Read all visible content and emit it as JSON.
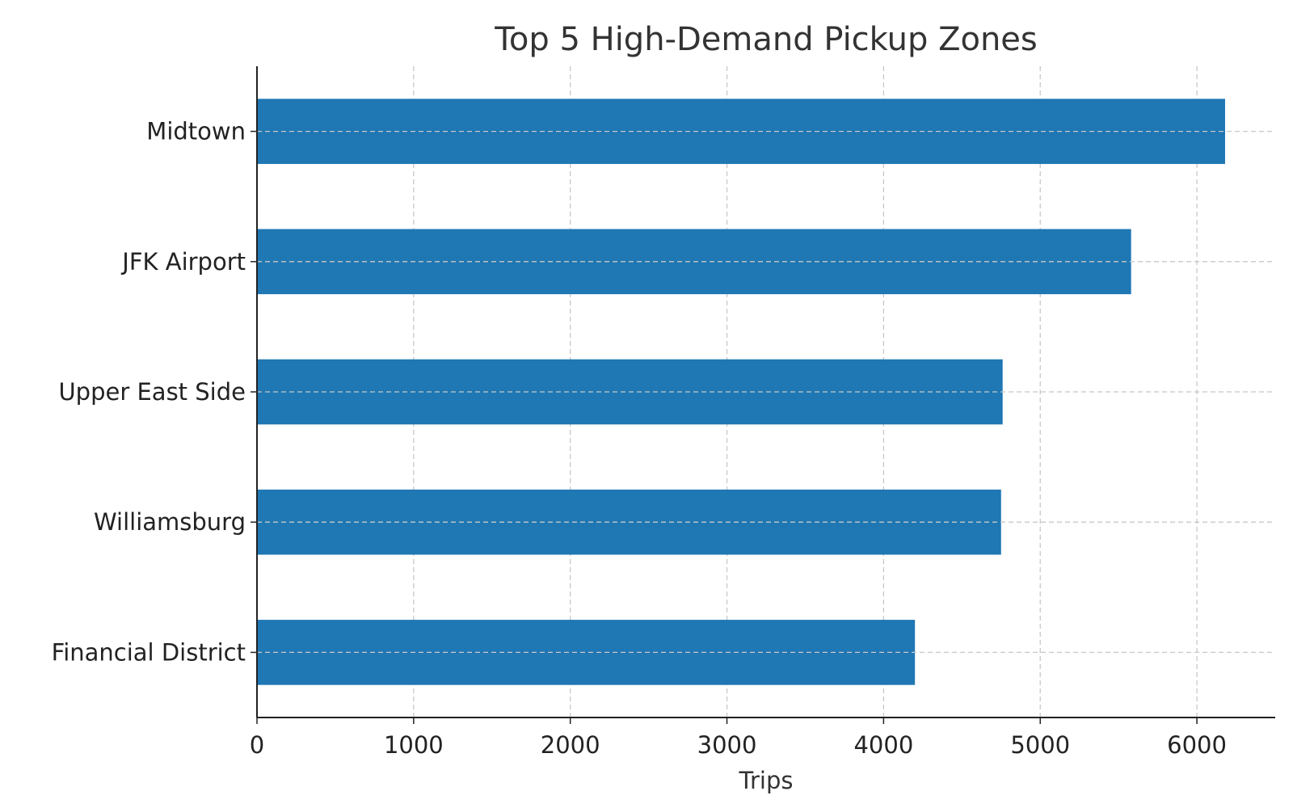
{
  "chart_data": {
    "type": "bar",
    "orientation": "horizontal",
    "title": "Top 5 High-Demand Pickup Zones",
    "xlabel": "Trips",
    "ylabel": "",
    "categories": [
      "Midtown",
      "JFK Airport",
      "Upper East Side",
      "Williamsburg",
      "Financial District"
    ],
    "values": [
      6180,
      5580,
      4760,
      4750,
      4200
    ],
    "xlim": [
      0,
      6500
    ],
    "x_ticks": [
      0,
      1000,
      2000,
      3000,
      4000,
      5000,
      6000
    ],
    "grid": true,
    "legend": "none",
    "bar_color": "#1f77b4"
  }
}
